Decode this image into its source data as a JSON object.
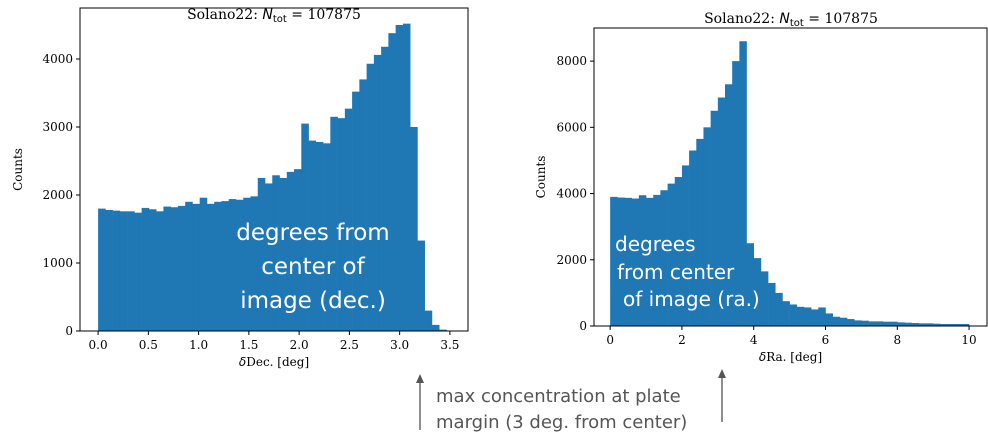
{
  "colors": {
    "bar": "#1f77b4",
    "annotation_text": "#ffffff",
    "note_text": "#555555",
    "arrow": "#555555"
  },
  "chart_data": [
    {
      "type": "bar",
      "title_prefix": "Solano22: ",
      "title_math_symbol": "N",
      "title_math_sub": "tot",
      "title_suffix": " = 107875",
      "xlabel_symbol": "δ",
      "xlabel_rest": "Dec. [deg]",
      "ylabel": "Counts",
      "xlim": [
        -0.18,
        3.68
      ],
      "ylim": [
        0,
        4750
      ],
      "xticks": [
        "0.0",
        "0.5",
        "1.0",
        "1.5",
        "2.0",
        "2.5",
        "3.0",
        "3.5"
      ],
      "xtick_values": [
        0,
        0.5,
        1.0,
        1.5,
        2.0,
        2.5,
        3.0,
        3.5
      ],
      "yticks": [
        "0",
        "1000",
        "2000",
        "3000",
        "4000"
      ],
      "ytick_values": [
        0,
        1000,
        2000,
        3000,
        4000
      ],
      "bin_start": 0.0,
      "bin_width": 0.0722,
      "values": [
        1800,
        1780,
        1770,
        1760,
        1760,
        1740,
        1810,
        1790,
        1760,
        1830,
        1820,
        1840,
        1900,
        1870,
        1960,
        1870,
        1900,
        1910,
        1940,
        1930,
        1960,
        1980,
        2250,
        2170,
        2290,
        2250,
        2340,
        2380,
        3050,
        2800,
        2780,
        2760,
        3150,
        3130,
        3270,
        3520,
        3700,
        3930,
        4060,
        4180,
        4380,
        4500,
        4520,
        3000,
        1330,
        300,
        90,
        20,
        0,
        0
      ],
      "annotation": [
        "degrees from",
        "center of",
        "image (dec.)"
      ]
    },
    {
      "type": "bar",
      "title_prefix": "Solano22: ",
      "title_math_symbol": "N",
      "title_math_sub": "tot",
      "title_suffix": " = 107875",
      "xlabel_symbol": "δ",
      "xlabel_rest": "Ra. [deg]",
      "ylabel": "Counts",
      "xlim": [
        -0.45,
        10.5
      ],
      "ylim": [
        0,
        9000
      ],
      "xticks": [
        "0",
        "2",
        "4",
        "6",
        "8",
        "10"
      ],
      "xtick_values": [
        0,
        2,
        4,
        6,
        8,
        10
      ],
      "yticks": [
        "0",
        "2000",
        "4000",
        "6000",
        "8000"
      ],
      "ytick_values": [
        0,
        2000,
        4000,
        6000,
        8000
      ],
      "bin_start": 0.0,
      "bin_width": 0.2,
      "values": [
        3900,
        3880,
        3870,
        3850,
        3950,
        3870,
        3960,
        4100,
        4300,
        4500,
        4850,
        5300,
        5650,
        6000,
        6500,
        6900,
        7300,
        8000,
        8600,
        2500,
        2050,
        1650,
        1300,
        1000,
        750,
        650,
        580,
        560,
        500,
        560,
        380,
        280,
        250,
        210,
        170,
        160,
        140,
        140,
        130,
        130,
        110,
        100,
        90,
        80,
        80,
        70,
        60,
        60,
        60,
        60
      ],
      "annotation": [
        "degrees",
        "from center",
        "of image (ra.)"
      ]
    }
  ],
  "note": {
    "text": "max concentration at plate\nmargin (3 deg. from center)"
  }
}
